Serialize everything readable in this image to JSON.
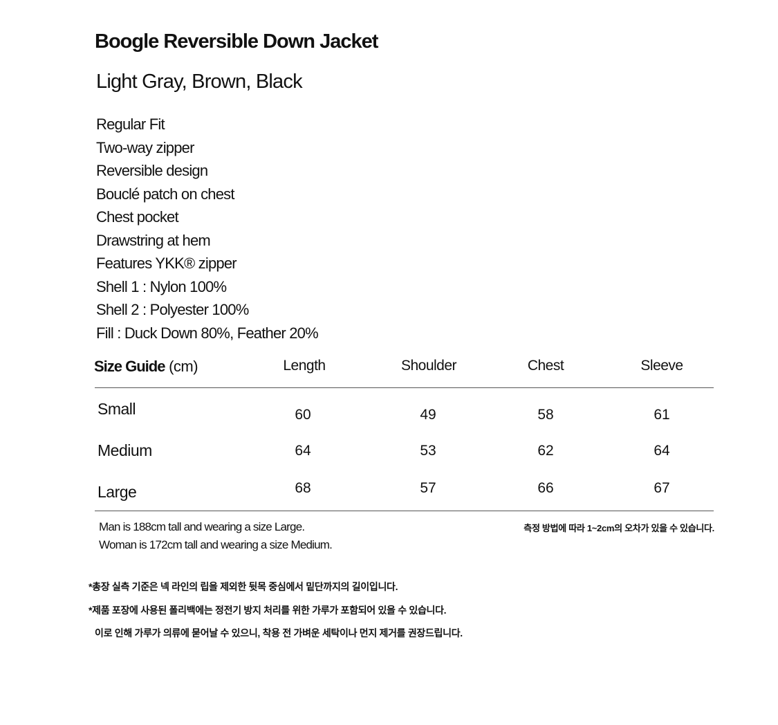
{
  "product": {
    "title": "Boogle Reversible Down Jacket",
    "colors": "Light Gray, Brown, Black",
    "features": [
      "Regular Fit",
      "Two-way zipper",
      "Reversible design",
      "Bouclé patch on chest",
      "Chest pocket",
      "Drawstring at hem",
      "Features YKK® zipper",
      "Shell 1 : Nylon 100%",
      "Shell 2 : Polyester 100%",
      "Fill : Duck Down 80%, Feather 20%"
    ]
  },
  "size_guide": {
    "title": "Size Guide",
    "unit": "(cm)",
    "columns": [
      "Length",
      "Shoulder",
      "Chest",
      "Sleeve"
    ],
    "rows": [
      {
        "size": "Small",
        "values": [
          "60",
          "49",
          "58",
          "61"
        ]
      },
      {
        "size": "Medium",
        "values": [
          "64",
          "53",
          "62",
          "64"
        ]
      },
      {
        "size": "Large",
        "values": [
          "68",
          "57",
          "66",
          "67"
        ]
      }
    ]
  },
  "notes": {
    "model_man": "Man is 188cm tall and wearing a size Large.",
    "model_woman": "Woman is 172cm tall and wearing a size Medium.",
    "measure_note": "측정 방법에 따라 1~2cm의 오차가 있을 수 있습니다.",
    "footnotes": [
      "*총장 실측 기준은 넥 라인의 립을 제외한 뒷목 중심에서 밑단까지의 길이입니다.",
      "*제품 포장에 사용된 폴리백에는 정전기 방지 처리를 위한 가루가 포함되어 있을 수 있습니다.",
      "이로 인해 가루가 의류에 묻어날 수 있으니, 착용 전 가벼운 세탁이나 먼지 제거를 권장드립니다."
    ]
  }
}
